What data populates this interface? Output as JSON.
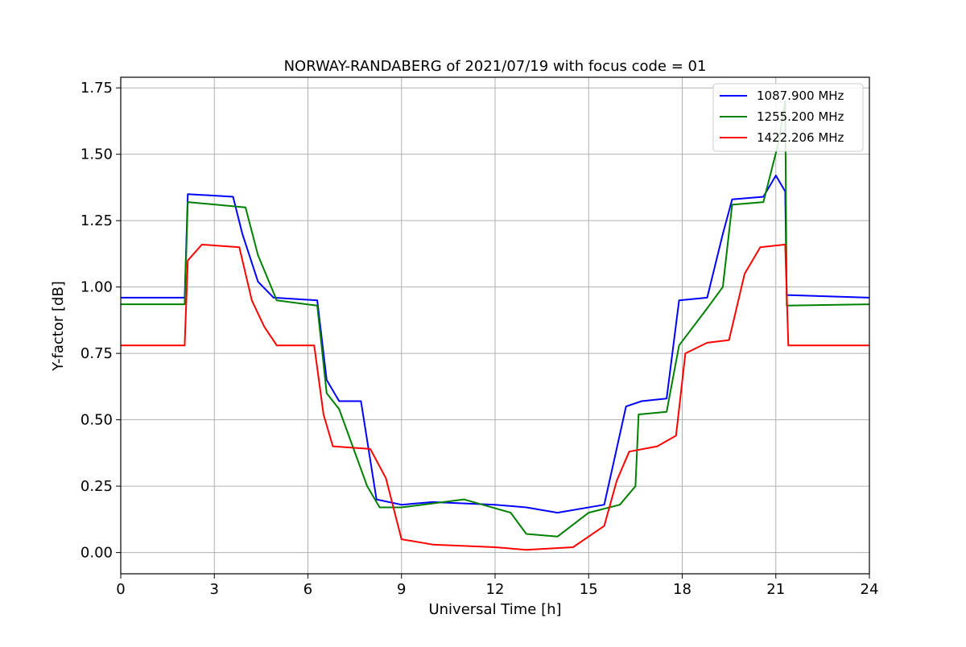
{
  "chart_data": {
    "type": "line",
    "title": "NORWAY-RANDABERG of 2021/07/19 with focus code = 01",
    "xlabel": "Universal Time [h]",
    "ylabel": "Y-factor [dB]",
    "xlim": [
      0,
      24
    ],
    "ylim": [
      -0.08,
      1.79
    ],
    "xticks": [
      0,
      3,
      6,
      9,
      12,
      15,
      18,
      21,
      24
    ],
    "yticks": [
      0.0,
      0.25,
      0.5,
      0.75,
      1.0,
      1.25,
      1.5,
      1.75
    ],
    "ytick_labels": [
      "0.00",
      "0.25",
      "0.50",
      "0.75",
      "1.00",
      "1.25",
      "1.50",
      "1.75"
    ],
    "grid": true,
    "legend_position": "top-right",
    "series": [
      {
        "name": "1087.900 MHz",
        "color": "#0000ff",
        "x": [
          0,
          2.05,
          2.15,
          3.6,
          3.9,
          4.4,
          4.9,
          6.3,
          6.6,
          7.0,
          7.7,
          8.2,
          9.0,
          10,
          12,
          13,
          14,
          15.5,
          16.2,
          16.7,
          17.5,
          17.9,
          18.8,
          19.3,
          19.6,
          20.6,
          21.0,
          21.3,
          21.35,
          24
        ],
        "y": [
          0.96,
          0.96,
          1.35,
          1.34,
          1.2,
          1.02,
          0.96,
          0.95,
          0.65,
          0.57,
          0.57,
          0.2,
          0.18,
          0.19,
          0.18,
          0.17,
          0.15,
          0.18,
          0.55,
          0.57,
          0.58,
          0.95,
          0.96,
          1.2,
          1.33,
          1.34,
          1.42,
          1.36,
          0.97,
          0.96
        ]
      },
      {
        "name": "1255.200 MHz",
        "color": "#008000",
        "x": [
          0,
          2.05,
          2.15,
          4.0,
          4.4,
          5.0,
          6.3,
          6.6,
          7.0,
          7.9,
          8.3,
          9.0,
          11,
          12.5,
          13.0,
          14.0,
          15.0,
          16.0,
          16.5,
          16.6,
          17.5,
          17.9,
          18.8,
          19.3,
          19.6,
          20.6,
          21.1,
          21.3,
          21.35,
          24
        ],
        "y": [
          0.935,
          0.935,
          1.32,
          1.3,
          1.12,
          0.95,
          0.93,
          0.6,
          0.54,
          0.25,
          0.17,
          0.17,
          0.2,
          0.15,
          0.07,
          0.06,
          0.15,
          0.18,
          0.25,
          0.52,
          0.53,
          0.78,
          0.92,
          1.0,
          1.31,
          1.32,
          1.55,
          1.7,
          0.93,
          0.935
        ]
      },
      {
        "name": "1422.206 MHz",
        "color": "#ff0000",
        "x": [
          0,
          2.05,
          2.15,
          2.6,
          3.8,
          4.2,
          4.6,
          5.0,
          6.2,
          6.5,
          6.8,
          8.0,
          8.5,
          9.0,
          10,
          12,
          13,
          14.5,
          15.5,
          15.9,
          16.3,
          17.2,
          17.8,
          18.1,
          18.8,
          19.5,
          20.0,
          20.5,
          21.3,
          21.4,
          24
        ],
        "y": [
          0.78,
          0.78,
          1.1,
          1.16,
          1.15,
          0.95,
          0.85,
          0.78,
          0.78,
          0.52,
          0.4,
          0.39,
          0.28,
          0.05,
          0.03,
          0.02,
          0.01,
          0.02,
          0.1,
          0.27,
          0.38,
          0.4,
          0.44,
          0.75,
          0.79,
          0.8,
          1.05,
          1.15,
          1.16,
          0.78,
          0.78
        ]
      }
    ]
  }
}
